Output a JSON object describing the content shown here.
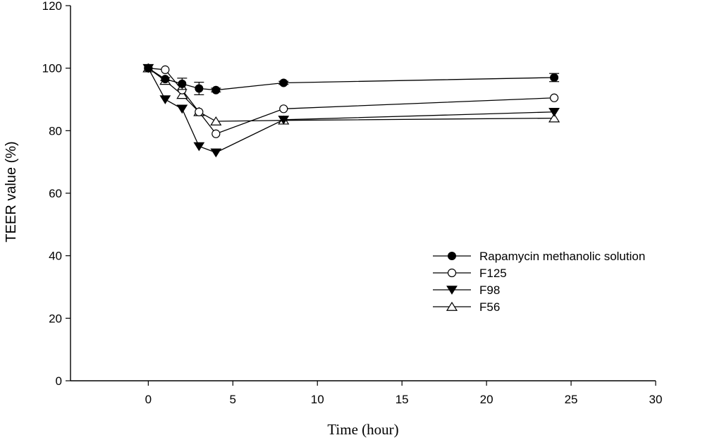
{
  "chart_data": {
    "type": "line",
    "title": "",
    "xlabel": "Time (hour)",
    "ylabel": "TEER value (%)",
    "xlim": [
      -4.6,
      30
    ],
    "ylim": [
      0,
      120
    ],
    "xticks": [
      0,
      5,
      10,
      15,
      20,
      25,
      30
    ],
    "yticks": [
      0,
      20,
      40,
      60,
      80,
      100,
      120
    ],
    "grid": false,
    "legend_position": "center-right",
    "series": [
      {
        "name": "Rapamycin methanolic solution",
        "marker": "filled-circle",
        "x": [
          0,
          1,
          2,
          3,
          4,
          8,
          24
        ],
        "y": [
          100,
          96.5,
          95,
          93.5,
          93,
          95.3,
          97
        ],
        "error": [
          0,
          0.5,
          1.8,
          2,
          0.6,
          0.5,
          1.3
        ]
      },
      {
        "name": "F125",
        "marker": "open-circle",
        "x": [
          0,
          1,
          2,
          3,
          4,
          8,
          24
        ],
        "y": [
          100,
          99.5,
          93,
          86,
          79,
          87,
          90.5
        ],
        "error": [
          0,
          0,
          0,
          0,
          0,
          0,
          0
        ]
      },
      {
        "name": "F98",
        "marker": "filled-triangle-down",
        "x": [
          0,
          1,
          2,
          3,
          4,
          8,
          24
        ],
        "y": [
          100,
          90,
          87,
          75,
          73,
          83.5,
          86
        ],
        "error": [
          0,
          0,
          0,
          0,
          0,
          0,
          0
        ]
      },
      {
        "name": "F56",
        "marker": "open-triangle-up",
        "x": [
          0,
          1,
          2,
          3,
          4,
          8,
          24
        ],
        "y": [
          100,
          96,
          91.5,
          86,
          83,
          83.3,
          84
        ],
        "error": [
          0,
          0,
          0,
          0,
          0,
          0,
          0
        ]
      }
    ]
  }
}
